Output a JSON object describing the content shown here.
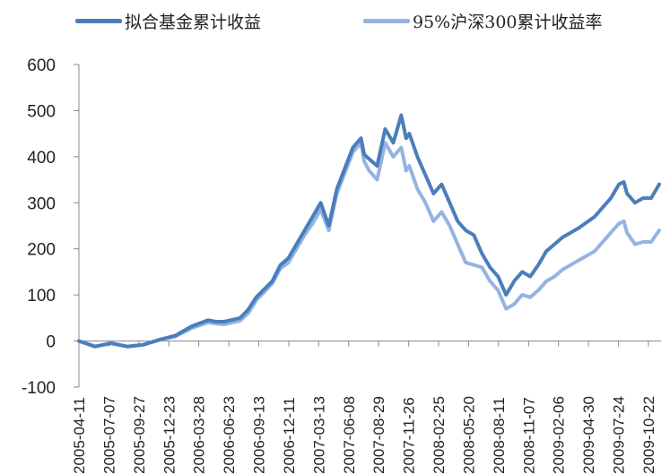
{
  "chart_data": {
    "type": "line",
    "title": "",
    "xlabel": "",
    "ylabel": "",
    "ylim": [
      -100,
      600
    ],
    "yticks": [
      -100,
      0,
      100,
      200,
      300,
      400,
      500,
      600
    ],
    "x_tick_labels": [
      "2005-04-11",
      "2005-07-07",
      "2005-09-27",
      "2005-12-23",
      "2006-03-28",
      "2006-06-23",
      "2006-09-13",
      "2006-12-11",
      "2007-03-13",
      "2007-06-08",
      "2007-08-29",
      "2007-11-26",
      "2008-02-25",
      "2008-05-20",
      "2008-08-11",
      "2008-11-07",
      "2009-02-06",
      "2009-04-30",
      "2009-07-24",
      "2009-10-22"
    ],
    "grid": false,
    "legend_position": "top",
    "series": [
      {
        "name": "拟合基金累计收益",
        "color": "#4a7ebb",
        "values": [
          [
            0,
            0
          ],
          [
            1,
            -12
          ],
          [
            2,
            -5
          ],
          [
            3,
            -12
          ],
          [
            4,
            -8
          ],
          [
            5,
            3
          ],
          [
            6,
            12
          ],
          [
            7,
            32
          ],
          [
            8,
            45
          ],
          [
            8.5,
            42
          ],
          [
            9,
            42
          ],
          [
            10,
            50
          ],
          [
            10.5,
            68
          ],
          [
            11,
            95
          ],
          [
            12,
            130
          ],
          [
            12.5,
            165
          ],
          [
            13,
            180
          ],
          [
            14,
            240
          ],
          [
            14.5,
            270
          ],
          [
            15,
            300
          ],
          [
            15.5,
            250
          ],
          [
            16,
            330
          ],
          [
            17,
            420
          ],
          [
            17.5,
            440
          ],
          [
            17.7,
            405
          ],
          [
            18,
            395
          ],
          [
            18.5,
            380
          ],
          [
            19,
            460
          ],
          [
            19.5,
            430
          ],
          [
            20,
            490
          ],
          [
            20.3,
            440
          ],
          [
            20.5,
            450
          ],
          [
            21,
            400
          ],
          [
            21.5,
            360
          ],
          [
            22,
            320
          ],
          [
            22.5,
            340
          ],
          [
            23,
            300
          ],
          [
            23.5,
            260
          ],
          [
            24,
            240
          ],
          [
            24.5,
            230
          ],
          [
            25,
            190
          ],
          [
            25.5,
            160
          ],
          [
            26,
            140
          ],
          [
            26.5,
            100
          ],
          [
            27,
            130
          ],
          [
            27.5,
            150
          ],
          [
            28,
            140
          ],
          [
            28.5,
            165
          ],
          [
            29,
            195
          ],
          [
            29.5,
            210
          ],
          [
            30,
            225
          ],
          [
            30.5,
            235
          ],
          [
            31,
            245
          ],
          [
            32,
            270
          ],
          [
            33,
            310
          ],
          [
            33.5,
            340
          ],
          [
            33.8,
            345
          ],
          [
            34,
            320
          ],
          [
            34.5,
            300
          ],
          [
            35,
            310
          ],
          [
            35.5,
            310
          ],
          [
            36,
            340
          ]
        ]
      },
      {
        "name": "95%沪深300累计收益率",
        "color": "#95b3e3",
        "values": [
          [
            0,
            0
          ],
          [
            1,
            -12
          ],
          [
            2,
            -5
          ],
          [
            3,
            -12
          ],
          [
            4,
            -8
          ],
          [
            5,
            2
          ],
          [
            6,
            10
          ],
          [
            7,
            28
          ],
          [
            8,
            40
          ],
          [
            8.5,
            38
          ],
          [
            9,
            36
          ],
          [
            10,
            44
          ],
          [
            10.5,
            60
          ],
          [
            11,
            88
          ],
          [
            12,
            125
          ],
          [
            12.5,
            158
          ],
          [
            13,
            170
          ],
          [
            14,
            230
          ],
          [
            14.5,
            255
          ],
          [
            15,
            285
          ],
          [
            15.5,
            240
          ],
          [
            16,
            320
          ],
          [
            17,
            410
          ],
          [
            17.5,
            430
          ],
          [
            17.7,
            390
          ],
          [
            18,
            370
          ],
          [
            18.5,
            350
          ],
          [
            19,
            430
          ],
          [
            19.5,
            400
          ],
          [
            20,
            420
          ],
          [
            20.3,
            370
          ],
          [
            20.5,
            380
          ],
          [
            21,
            330
          ],
          [
            21.5,
            300
          ],
          [
            22,
            260
          ],
          [
            22.5,
            280
          ],
          [
            23,
            250
          ],
          [
            23.5,
            210
          ],
          [
            24,
            170
          ],
          [
            24.5,
            165
          ],
          [
            25,
            160
          ],
          [
            25.5,
            130
          ],
          [
            26,
            110
          ],
          [
            26.5,
            70
          ],
          [
            27,
            80
          ],
          [
            27.5,
            100
          ],
          [
            28,
            95
          ],
          [
            28.5,
            110
          ],
          [
            29,
            130
          ],
          [
            29.5,
            140
          ],
          [
            30,
            155
          ],
          [
            30.5,
            165
          ],
          [
            31,
            175
          ],
          [
            32,
            195
          ],
          [
            33,
            235
          ],
          [
            33.5,
            255
          ],
          [
            33.8,
            260
          ],
          [
            34,
            235
          ],
          [
            34.5,
            210
          ],
          [
            35,
            215
          ],
          [
            35.5,
            215
          ],
          [
            36,
            240
          ]
        ]
      }
    ]
  }
}
